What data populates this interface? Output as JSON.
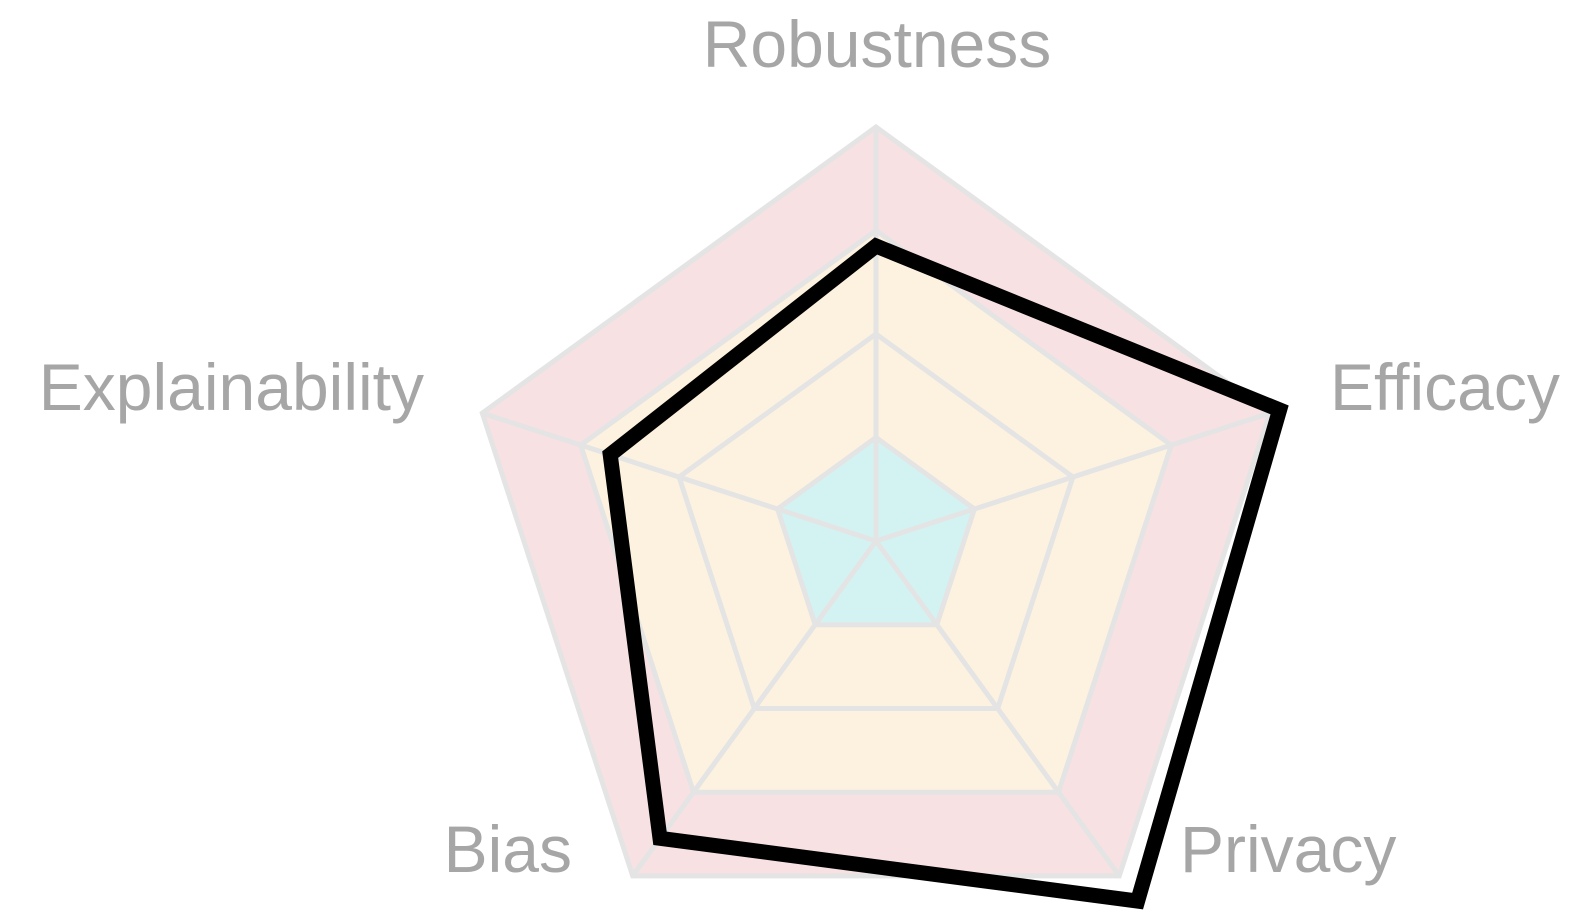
{
  "chart_data": {
    "type": "radar",
    "axes": [
      "Robustness",
      "Efficacy",
      "Privacy",
      "Bias",
      "Explainability"
    ],
    "range": [
      0,
      4
    ],
    "grid_levels": [
      1,
      2,
      3,
      4
    ],
    "bands": [
      {
        "from": 0,
        "to": 1,
        "color": "#d3f3f3"
      },
      {
        "from": 1,
        "to": 3,
        "color": "#fcf2df"
      },
      {
        "from": 3,
        "to": 4,
        "color": "#f7e1e3"
      }
    ],
    "grid_color": "#e4e4e4",
    "series": [
      {
        "values": [
          2.85,
          4.1,
          4.3,
          3.55,
          2.7
        ],
        "color": "#000000"
      }
    ]
  }
}
